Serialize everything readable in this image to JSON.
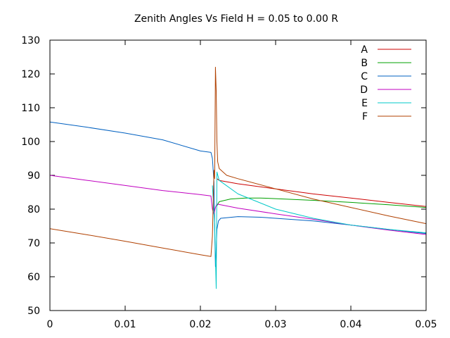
{
  "chart_data": {
    "type": "line",
    "title": "Zenith Angles Vs Field H = 0.05 to 0.00 R",
    "xlabel": "",
    "ylabel": "",
    "xlim": [
      0,
      0.05
    ],
    "ylim": [
      50,
      130
    ],
    "x_ticks": [
      0,
      0.01,
      0.02,
      0.03,
      0.04,
      0.05
    ],
    "x_tick_labels": [
      "0",
      "0.01",
      "0.02",
      "0.03",
      "0.04",
      "0.05"
    ],
    "y_ticks": [
      50,
      60,
      70,
      80,
      90,
      100,
      110,
      120,
      130
    ],
    "y_tick_labels": [
      "50",
      "60",
      "70",
      "80",
      "90",
      "100",
      "110",
      "120",
      "130"
    ],
    "grid": false,
    "legend_position": "top-right",
    "series": [
      {
        "name": "A",
        "color": "#cc0000",
        "points": [
          [
            0.0222,
            89
          ],
          [
            0.0225,
            88.5
          ],
          [
            0.025,
            87.5
          ],
          [
            0.03,
            86
          ],
          [
            0.035,
            84.5
          ],
          [
            0.04,
            83.3
          ],
          [
            0.045,
            82
          ],
          [
            0.05,
            80.8
          ]
        ]
      },
      {
        "name": "B",
        "color": "#00a000",
        "points": [
          [
            0.0222,
            81
          ],
          [
            0.0225,
            82.2
          ],
          [
            0.024,
            83
          ],
          [
            0.026,
            83.3
          ],
          [
            0.028,
            83.3
          ],
          [
            0.03,
            83.1
          ],
          [
            0.035,
            82.6
          ],
          [
            0.04,
            82
          ],
          [
            0.045,
            81.3
          ],
          [
            0.05,
            80.5
          ]
        ]
      },
      {
        "name": "C",
        "color": "#0060c0",
        "points": [
          [
            0,
            105.8
          ],
          [
            0.005,
            104.2
          ],
          [
            0.01,
            102.5
          ],
          [
            0.015,
            100.5
          ],
          [
            0.02,
            97.2
          ],
          [
            0.0214,
            96.8
          ],
          [
            0.0216,
            95
          ],
          [
            0.0218,
            88
          ],
          [
            0.0219,
            74
          ],
          [
            0.022,
            63
          ],
          [
            0.0221,
            68
          ],
          [
            0.0222,
            74
          ],
          [
            0.0224,
            76.5
          ],
          [
            0.0227,
            77.3
          ],
          [
            0.025,
            77.8
          ],
          [
            0.028,
            77.6
          ],
          [
            0.03,
            77.3
          ],
          [
            0.035,
            76.5
          ],
          [
            0.04,
            75.3
          ],
          [
            0.045,
            74
          ],
          [
            0.05,
            72.8
          ]
        ]
      },
      {
        "name": "D",
        "color": "#c000c0",
        "points": [
          [
            0,
            90
          ],
          [
            0.005,
            88.5
          ],
          [
            0.01,
            87
          ],
          [
            0.015,
            85.5
          ],
          [
            0.02,
            84.3
          ],
          [
            0.0214,
            83.9
          ],
          [
            0.0216,
            80
          ],
          [
            0.0218,
            78.5
          ],
          [
            0.022,
            80.5
          ],
          [
            0.0222,
            81.5
          ],
          [
            0.025,
            80.3
          ],
          [
            0.03,
            78.6
          ],
          [
            0.035,
            77
          ],
          [
            0.04,
            75.3
          ],
          [
            0.045,
            73.8
          ],
          [
            0.05,
            72.5
          ]
        ]
      },
      {
        "name": "E",
        "color": "#00c8c8",
        "points": [
          [
            0.0216,
            87
          ],
          [
            0.0219,
            75
          ],
          [
            0.0221,
            56.5
          ],
          [
            0.0222,
            91
          ],
          [
            0.0225,
            88.5
          ],
          [
            0.025,
            84.5
          ],
          [
            0.03,
            80
          ],
          [
            0.035,
            77.3
          ],
          [
            0.04,
            75.3
          ],
          [
            0.045,
            74
          ],
          [
            0.05,
            73
          ]
        ]
      },
      {
        "name": "F",
        "color": "#b04000",
        "points": [
          [
            0,
            74.2
          ],
          [
            0.005,
            72.4
          ],
          [
            0.01,
            70.5
          ],
          [
            0.015,
            68.5
          ],
          [
            0.02,
            66.5
          ],
          [
            0.0214,
            66
          ],
          [
            0.0216,
            72
          ],
          [
            0.0218,
            91.5
          ],
          [
            0.0219,
            89
          ],
          [
            0.022,
            122
          ],
          [
            0.0221,
            115
          ],
          [
            0.0222,
            100
          ],
          [
            0.0223,
            94
          ],
          [
            0.0225,
            92
          ],
          [
            0.0235,
            90
          ],
          [
            0.025,
            89
          ],
          [
            0.03,
            86
          ],
          [
            0.035,
            83
          ],
          [
            0.04,
            80.5
          ],
          [
            0.045,
            78
          ],
          [
            0.05,
            75.7
          ]
        ]
      }
    ]
  }
}
